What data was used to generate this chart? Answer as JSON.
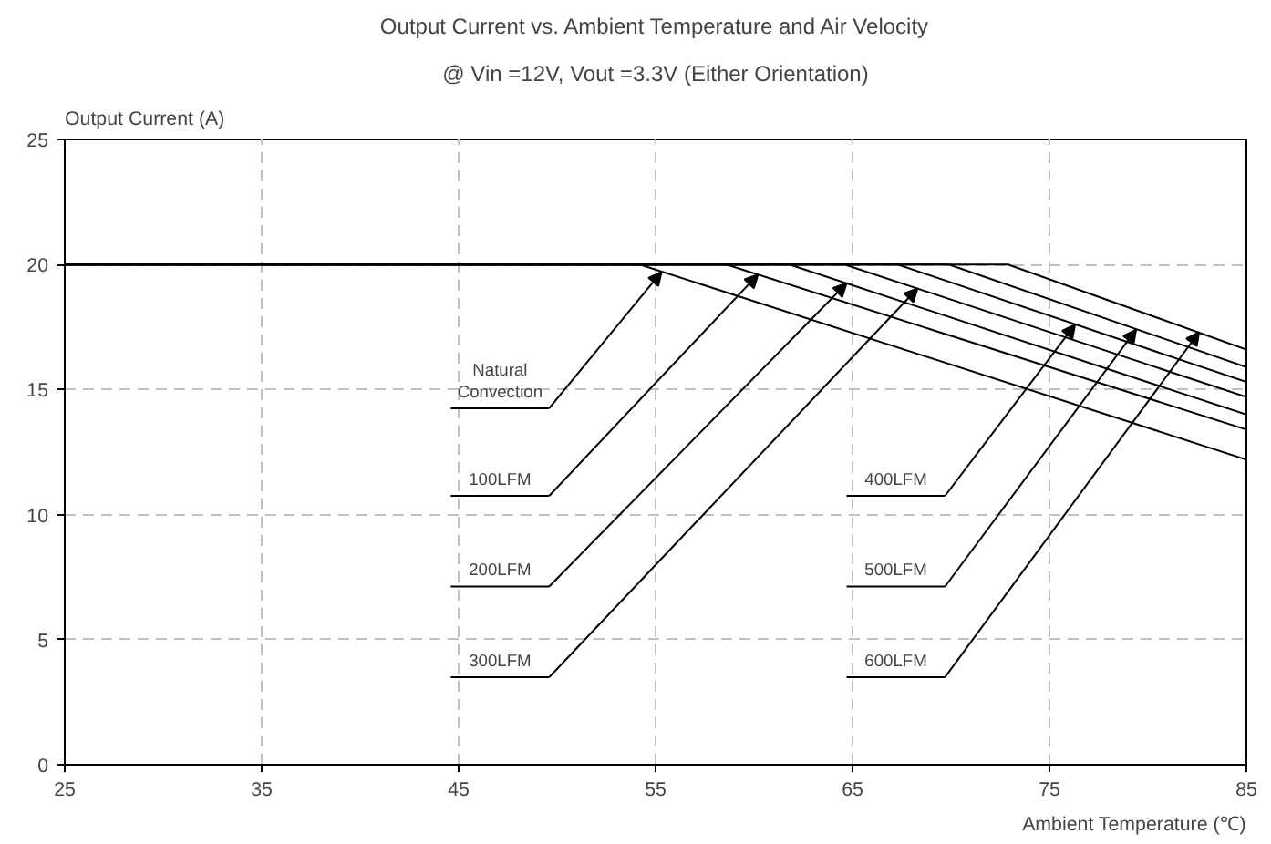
{
  "chart_data": {
    "type": "line",
    "title": "Output Current vs. Ambient Temperature and Air Velocity",
    "subtitle": "@ Vin =12V, Vout =3.3V (Either Orientation)",
    "xlabel": "Ambient Temperature (℃)",
    "ylabel": "Output Current (A)",
    "xlim": [
      25,
      85
    ],
    "ylim": [
      0,
      25
    ],
    "xticks": [
      25,
      35,
      45,
      55,
      65,
      75,
      85
    ],
    "yticks": [
      0,
      5,
      10,
      15,
      20,
      25
    ],
    "grid": true,
    "line_style": "solid",
    "series": [
      {
        "color": "#000000",
        "x": [
          25,
          54.2,
          85
        ],
        "values": [
          20,
          20,
          12.2
        ]
      },
      {
        "color": "#000000",
        "x": [
          25,
          58.6,
          85
        ],
        "values": [
          20,
          20,
          13.4
        ]
      },
      {
        "color": "#000000",
        "x": [
          25,
          61.8,
          85
        ],
        "values": [
          20,
          20,
          14.0
        ]
      },
      {
        "color": "#000000",
        "x": [
          25,
          64.6,
          85
        ],
        "values": [
          20,
          20,
          14.7
        ]
      },
      {
        "color": "#000000",
        "x": [
          25,
          67.3,
          85
        ],
        "values": [
          20,
          20,
          15.3
        ]
      },
      {
        "color": "#000000",
        "x": [
          25,
          69.9,
          85
        ],
        "values": [
          20,
          20,
          15.9
        ]
      },
      {
        "color": "#000000",
        "x": [
          25,
          72.9,
          85
        ],
        "values": [
          20,
          20,
          16.6
        ]
      }
    ],
    "annotations": [
      {
        "text": "Natural Convection",
        "x": 55.3,
        "y": 19.7
      },
      {
        "text": "100LFM",
        "x": 60.2,
        "y": 19.6
      },
      {
        "text": "200LFM",
        "x": 64.7,
        "y": 19.25
      },
      {
        "text": "300LFM",
        "x": 68.3,
        "y": 19.04
      },
      {
        "text": "400LFM",
        "x": 76.3,
        "y": 17.6
      },
      {
        "text": "500LFM",
        "x": 79.4,
        "y": 17.4
      },
      {
        "text": "600LFM",
        "x": 82.6,
        "y": 17.3
      }
    ]
  }
}
